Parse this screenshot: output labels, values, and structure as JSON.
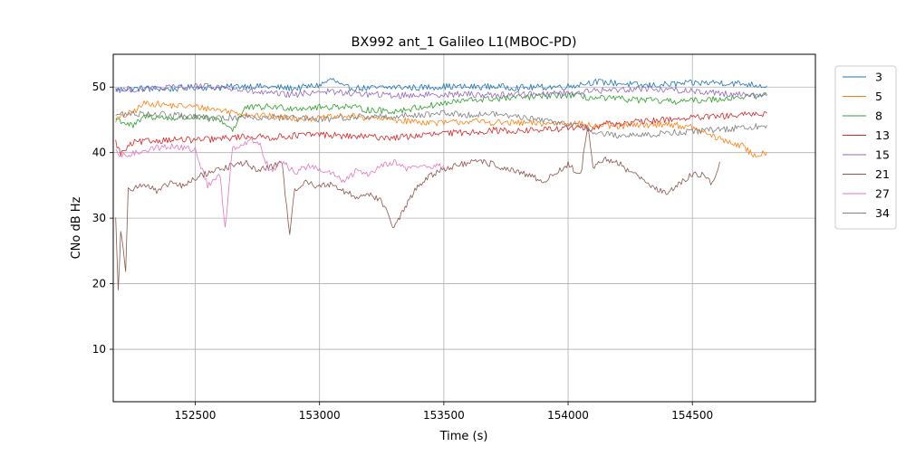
{
  "chart_data": {
    "type": "line",
    "title": "BX992 ant_1 Galileo L1(MBOC-PD)",
    "xlabel": "Time (s)",
    "ylabel": "CNo dB Hz",
    "xlim": [
      152170,
      154995
    ],
    "ylim": [
      2,
      55
    ],
    "xticks": [
      152500,
      153000,
      153500,
      154000,
      154500
    ],
    "yticks": [
      10,
      20,
      30,
      40,
      50
    ],
    "grid": true,
    "legend_position": "outside-right",
    "series": [
      {
        "name": "3",
        "color": "#1f77b4",
        "points": [
          [
            152180,
            49.6
          ],
          [
            152300,
            49.8
          ],
          [
            152400,
            49.7
          ],
          [
            152500,
            50.0
          ],
          [
            152600,
            49.9
          ],
          [
            152700,
            50.2
          ],
          [
            152800,
            50.0
          ],
          [
            152900,
            49.8
          ],
          [
            153000,
            50.3
          ],
          [
            153050,
            51.2
          ],
          [
            153100,
            49.9
          ],
          [
            153200,
            49.8
          ],
          [
            153300,
            50.0
          ],
          [
            153400,
            49.9
          ],
          [
            153500,
            50.1
          ],
          [
            153600,
            50.0
          ],
          [
            153700,
            50.1
          ],
          [
            153800,
            49.9
          ],
          [
            153900,
            50.0
          ],
          [
            154000,
            50.1
          ],
          [
            154100,
            50.8
          ],
          [
            154200,
            50.6
          ],
          [
            154300,
            50.2
          ],
          [
            154400,
            50.4
          ],
          [
            154500,
            50.6
          ],
          [
            154600,
            50.7
          ],
          [
            154700,
            50.5
          ],
          [
            154800,
            50.2
          ]
        ]
      },
      {
        "name": "5",
        "color": "#ff7f0e",
        "points": [
          [
            152180,
            45.0
          ],
          [
            152250,
            46.2
          ],
          [
            152300,
            47.6
          ],
          [
            152400,
            47.2
          ],
          [
            152500,
            47.0
          ],
          [
            152600,
            46.5
          ],
          [
            152700,
            45.9
          ],
          [
            152800,
            45.5
          ],
          [
            152900,
            45.3
          ],
          [
            153000,
            45.2
          ],
          [
            153100,
            45.6
          ],
          [
            153200,
            45.3
          ],
          [
            153300,
            45.0
          ],
          [
            153400,
            44.7
          ],
          [
            153500,
            44.5
          ],
          [
            153600,
            44.8
          ],
          [
            153700,
            44.6
          ],
          [
            153800,
            44.5
          ],
          [
            153900,
            44.4
          ],
          [
            154000,
            44.6
          ],
          [
            154100,
            44.1
          ],
          [
            154200,
            44.0
          ],
          [
            154300,
            44.2
          ],
          [
            154400,
            44.4
          ],
          [
            154500,
            43.8
          ],
          [
            154600,
            42.2
          ],
          [
            154700,
            41.0
          ],
          [
            154750,
            39.5
          ],
          [
            154800,
            40.1
          ]
        ]
      },
      {
        "name": "8",
        "color": "#2ca02c",
        "points": [
          [
            152180,
            45.2
          ],
          [
            152250,
            44.0
          ],
          [
            152300,
            45.6
          ],
          [
            152400,
            45.2
          ],
          [
            152500,
            45.4
          ],
          [
            152600,
            45.0
          ],
          [
            152650,
            43.5
          ],
          [
            152700,
            46.8
          ],
          [
            152800,
            47.0
          ],
          [
            152900,
            46.8
          ],
          [
            153000,
            46.9
          ],
          [
            153100,
            47.1
          ],
          [
            153200,
            46.5
          ],
          [
            153300,
            46.3
          ],
          [
            153400,
            46.9
          ],
          [
            153500,
            47.5
          ],
          [
            153600,
            48.0
          ],
          [
            153700,
            48.2
          ],
          [
            153800,
            48.4
          ],
          [
            153900,
            48.6
          ],
          [
            154000,
            48.8
          ],
          [
            154100,
            48.3
          ],
          [
            154200,
            48.2
          ],
          [
            154300,
            48.0
          ],
          [
            154400,
            47.8
          ],
          [
            154500,
            47.9
          ],
          [
            154600,
            48.2
          ],
          [
            154700,
            48.5
          ],
          [
            154800,
            48.8
          ]
        ]
      },
      {
        "name": "13",
        "color": "#d62728",
        "points": [
          [
            152180,
            41.6
          ],
          [
            152200,
            39.8
          ],
          [
            152250,
            41.5
          ],
          [
            152300,
            41.7
          ],
          [
            152400,
            42.0
          ],
          [
            152500,
            41.9
          ],
          [
            152600,
            42.1
          ],
          [
            152700,
            42.5
          ],
          [
            152800,
            42.3
          ],
          [
            152900,
            42.6
          ],
          [
            153000,
            42.8
          ],
          [
            153100,
            42.5
          ],
          [
            153200,
            42.4
          ],
          [
            153300,
            42.3
          ],
          [
            153400,
            42.6
          ],
          [
            153500,
            42.9
          ],
          [
            153600,
            43.1
          ],
          [
            153700,
            43.4
          ],
          [
            153800,
            43.3
          ],
          [
            153900,
            43.5
          ],
          [
            154000,
            43.7
          ],
          [
            154100,
            43.8
          ],
          [
            154150,
            44.5
          ],
          [
            154200,
            44.4
          ],
          [
            154300,
            44.7
          ],
          [
            154400,
            45.1
          ],
          [
            154500,
            45.3
          ],
          [
            154600,
            45.5
          ],
          [
            154700,
            45.7
          ],
          [
            154800,
            46.0
          ]
        ]
      },
      {
        "name": "15",
        "color": "#9467bd",
        "points": [
          [
            152180,
            49.6
          ],
          [
            152300,
            49.7
          ],
          [
            152400,
            49.9
          ],
          [
            152500,
            50.1
          ],
          [
            152600,
            50.0
          ],
          [
            152700,
            49.4
          ],
          [
            152800,
            49.0
          ],
          [
            152900,
            48.8
          ],
          [
            153000,
            49.4
          ],
          [
            153100,
            49.1
          ],
          [
            153200,
            48.9
          ],
          [
            153300,
            48.7
          ],
          [
            153400,
            48.8
          ],
          [
            153500,
            48.9
          ],
          [
            153600,
            48.9
          ],
          [
            153700,
            48.8
          ],
          [
            153800,
            48.9
          ],
          [
            153900,
            49.0
          ],
          [
            154000,
            49.1
          ],
          [
            154100,
            49.4
          ],
          [
            154200,
            49.6
          ],
          [
            154300,
            49.8
          ],
          [
            154400,
            49.6
          ],
          [
            154500,
            49.4
          ],
          [
            154600,
            49.1
          ],
          [
            154700,
            48.9
          ],
          [
            154800,
            48.7
          ]
        ]
      },
      {
        "name": "21",
        "color": "#8c564b",
        "points": [
          [
            152180,
            30.0
          ],
          [
            152190,
            19.0
          ],
          [
            152200,
            28.0
          ],
          [
            152220,
            22.0
          ],
          [
            152230,
            35.0
          ],
          [
            152250,
            34.5
          ],
          [
            152300,
            35.2
          ],
          [
            152350,
            33.9
          ],
          [
            152400,
            35.5
          ],
          [
            152450,
            34.8
          ],
          [
            152500,
            36.1
          ],
          [
            152550,
            36.9
          ],
          [
            152600,
            37.5
          ],
          [
            152650,
            38.0
          ],
          [
            152700,
            38.5
          ],
          [
            152750,
            37.2
          ],
          [
            152800,
            37.8
          ],
          [
            152850,
            38.5
          ],
          [
            152880,
            27.0
          ],
          [
            152900,
            34.5
          ],
          [
            152950,
            35.5
          ],
          [
            153000,
            34.8
          ],
          [
            153050,
            35.3
          ],
          [
            153100,
            34.0
          ],
          [
            153150,
            33.2
          ],
          [
            153200,
            33.8
          ],
          [
            153250,
            32.5
          ],
          [
            153300,
            28.5
          ],
          [
            153350,
            32.0
          ],
          [
            153400,
            35.2
          ],
          [
            153450,
            36.5
          ],
          [
            153500,
            37.6
          ],
          [
            153550,
            38.0
          ],
          [
            153600,
            38.4
          ],
          [
            153650,
            38.6
          ],
          [
            153700,
            38.2
          ],
          [
            153750,
            37.5
          ],
          [
            153800,
            36.9
          ],
          [
            153850,
            36.4
          ],
          [
            153900,
            35.6
          ],
          [
            153950,
            36.8
          ],
          [
            154000,
            38.2
          ],
          [
            154050,
            36.5
          ],
          [
            154080,
            44.0
          ],
          [
            154100,
            37.5
          ],
          [
            154150,
            39.0
          ],
          [
            154200,
            38.5
          ],
          [
            154250,
            37.0
          ],
          [
            154300,
            36.2
          ],
          [
            154350,
            34.5
          ],
          [
            154400,
            33.8
          ],
          [
            154450,
            35.2
          ],
          [
            154500,
            36.8
          ],
          [
            154550,
            36.5
          ],
          [
            154580,
            35.0
          ],
          [
            154610,
            38.6
          ]
        ]
      },
      {
        "name": "27",
        "color": "#e377c2",
        "points": [
          [
            152180,
            40.0
          ],
          [
            152200,
            39.4
          ],
          [
            152250,
            39.8
          ],
          [
            152300,
            40.5
          ],
          [
            152400,
            41.0
          ],
          [
            152500,
            40.4
          ],
          [
            152550,
            35.0
          ],
          [
            152600,
            36.5
          ],
          [
            152620,
            28.5
          ],
          [
            152650,
            40.8
          ],
          [
            152700,
            41.5
          ],
          [
            152750,
            42.0
          ],
          [
            152800,
            37.2
          ],
          [
            152850,
            38.5
          ],
          [
            152900,
            37.0
          ],
          [
            152950,
            37.9
          ],
          [
            153000,
            37.4
          ],
          [
            153050,
            36.8
          ],
          [
            153100,
            35.5
          ],
          [
            153150,
            37.3
          ],
          [
            153200,
            36.7
          ],
          [
            153250,
            38.2
          ],
          [
            153300,
            38.6
          ],
          [
            153350,
            37.5
          ],
          [
            153400,
            38.0
          ],
          [
            153450,
            37.8
          ],
          [
            153500,
            38.0
          ]
        ]
      },
      {
        "name": "34",
        "color": "#7f7f7f",
        "points": [
          [
            152180,
            45.8
          ],
          [
            152300,
            46.0
          ],
          [
            152400,
            45.7
          ],
          [
            152500,
            45.4
          ],
          [
            152600,
            45.2
          ],
          [
            152700,
            45.5
          ],
          [
            152800,
            45.4
          ],
          [
            152900,
            45.2
          ],
          [
            153000,
            45.0
          ],
          [
            153100,
            45.4
          ],
          [
            153200,
            45.5
          ],
          [
            153300,
            45.5
          ],
          [
            153400,
            45.8
          ],
          [
            153500,
            46.0
          ],
          [
            153600,
            45.8
          ],
          [
            153700,
            45.9
          ],
          [
            153800,
            45.5
          ],
          [
            153900,
            44.9
          ],
          [
            154000,
            44.5
          ],
          [
            154050,
            44.0
          ],
          [
            154100,
            43.2
          ],
          [
            154200,
            42.6
          ],
          [
            154300,
            42.7
          ],
          [
            154400,
            43.0
          ],
          [
            154500,
            43.2
          ],
          [
            154600,
            43.5
          ],
          [
            154700,
            43.8
          ],
          [
            154800,
            44.2
          ]
        ]
      }
    ]
  }
}
